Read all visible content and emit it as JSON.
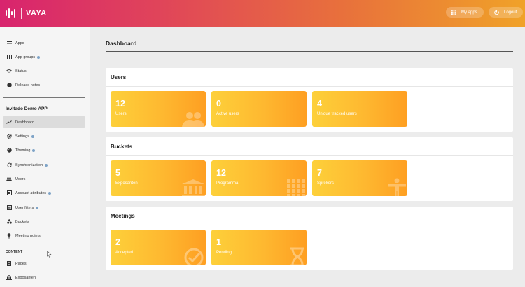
{
  "header": {
    "logo_text": "VAYA",
    "my_apps_label": "My apps",
    "logout_label": "Logout"
  },
  "sidebar": {
    "top_items": [
      {
        "label": "Apps",
        "icon": "list-icon"
      },
      {
        "label": "App groups",
        "icon": "app-groups-icon",
        "dot": true
      },
      {
        "label": "Status",
        "icon": "wifi-icon"
      },
      {
        "label": "Release notes",
        "icon": "globe-icon"
      }
    ],
    "app_title": "Invitado Demo APP",
    "app_items": [
      {
        "label": "Dashboard",
        "icon": "trending-icon",
        "active": true
      },
      {
        "label": "Settings",
        "icon": "gear-icon",
        "dot": true
      },
      {
        "label": "Theming",
        "icon": "palette-icon",
        "dot": true
      },
      {
        "label": "Synchronization",
        "icon": "sync-icon",
        "dot": true
      },
      {
        "label": "Users",
        "icon": "users-icon"
      },
      {
        "label": "Account attributes",
        "icon": "contact-card-icon",
        "dot": true
      },
      {
        "label": "User filters",
        "icon": "filter-list-icon",
        "dot": true
      },
      {
        "label": "Buckets",
        "icon": "buckets-icon"
      },
      {
        "label": "Meeting points",
        "icon": "pin-icon"
      }
    ],
    "content_title": "CONTENT",
    "content_items": [
      {
        "label": "Pages",
        "icon": "page-icon"
      },
      {
        "label": "Exposanten",
        "icon": "bank-icon"
      }
    ]
  },
  "main": {
    "title": "Dashboard",
    "panels": [
      {
        "title": "Users",
        "cards": [
          {
            "value": "12",
            "label": "Users",
            "icon": "users-icon"
          },
          {
            "value": "0",
            "label": "Active users",
            "icon": ""
          },
          {
            "value": "4",
            "label": "Unique tracked users",
            "icon": ""
          }
        ]
      },
      {
        "title": "Buckets",
        "cards": [
          {
            "value": "5",
            "label": "Exposanten",
            "icon": "bank-icon"
          },
          {
            "value": "12",
            "label": "Programma",
            "icon": "grid-icon"
          },
          {
            "value": "7",
            "label": "Sprekers",
            "icon": "person-icon"
          }
        ]
      },
      {
        "title": "Meetings",
        "cards": [
          {
            "value": "2",
            "label": "Accepted",
            "icon": "check-circle-icon"
          },
          {
            "value": "1",
            "label": "Pending",
            "icon": "hourglass-icon"
          }
        ]
      }
    ]
  },
  "colors": {
    "header_gradient_start": "#d8246e",
    "header_gradient_end": "#f0a228",
    "card_gradient_start": "#fdd03a",
    "card_gradient_end": "#fe9f22",
    "status_dot": "#7ea3c7"
  }
}
